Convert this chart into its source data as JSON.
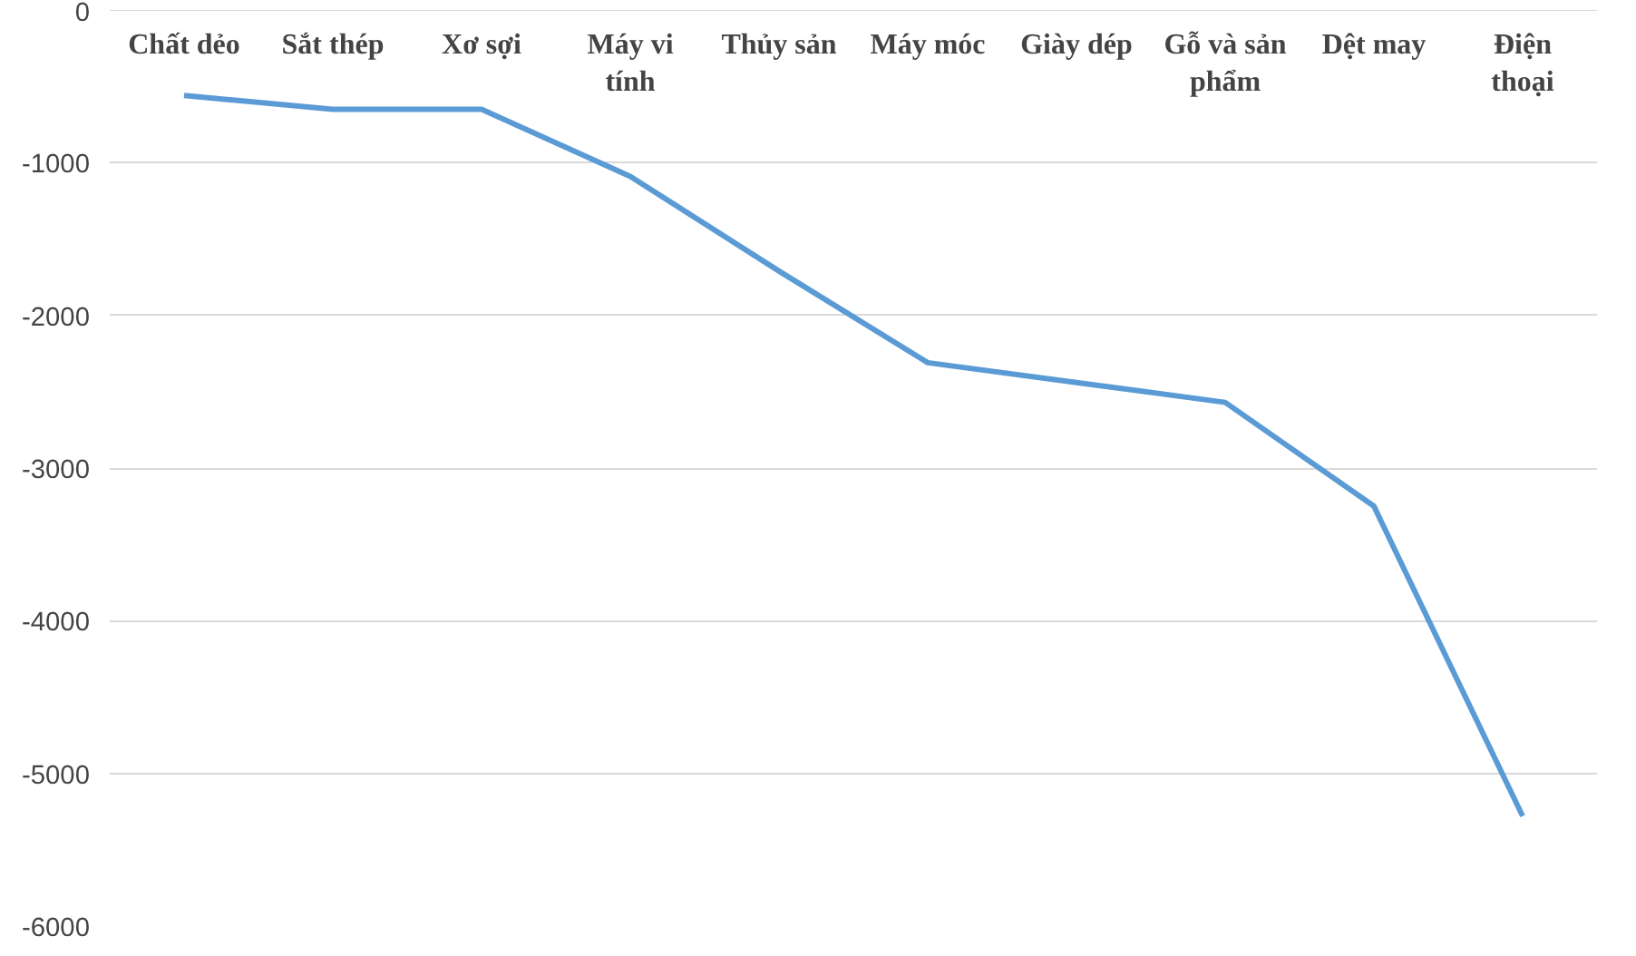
{
  "chart_data": {
    "type": "line",
    "categories": [
      "Chất dẻo",
      "Sắt thép",
      "Xơ sợi",
      "Máy vi tính",
      "Thủy sản",
      "Máy móc",
      "Giày dép",
      "Gỗ và sản phẩm",
      "Dệt may",
      "Điện thoại"
    ],
    "series": [
      {
        "color": "#5b9bd5",
        "values": [
          -560,
          -650,
          -650,
          -1090,
          -1710,
          -2310,
          -2440,
          -2570,
          -3250,
          -5280
        ]
      }
    ],
    "ylim": [
      -6000,
      0
    ],
    "yticks": [
      -6000,
      -5000,
      -4000,
      -3000,
      -2000,
      -1000,
      0
    ],
    "grid": "y",
    "marker": "none",
    "line_style": "solid"
  }
}
